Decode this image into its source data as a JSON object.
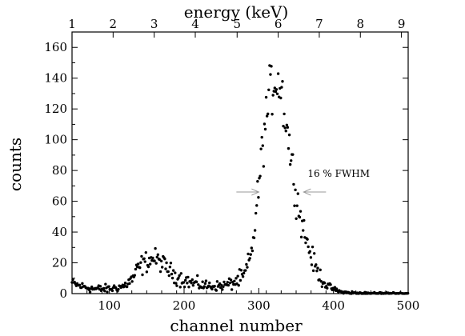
{
  "chart_data": {
    "type": "scatter",
    "title": "",
    "xlabel": "channel number",
    "ylabel": "counts",
    "x2label": "energy (keV)",
    "xlim": [
      50,
      500
    ],
    "ylim": [
      0,
      170
    ],
    "x_ticks": [
      100,
      200,
      300,
      400,
      500
    ],
    "y_ticks": [
      0,
      20,
      40,
      60,
      80,
      100,
      120,
      140,
      160
    ],
    "top_axis": {
      "ticks": [
        {
          "channel": 50,
          "label": "1"
        },
        {
          "channel": 105,
          "label": "2"
        },
        {
          "channel": 160,
          "label": "3"
        },
        {
          "channel": 215,
          "label": "4"
        },
        {
          "channel": 271,
          "label": "5"
        },
        {
          "channel": 326,
          "label": "6"
        },
        {
          "channel": 381,
          "label": "7"
        },
        {
          "channel": 436,
          "label": "8"
        },
        {
          "channel": 491,
          "label": "9"
        }
      ]
    },
    "grid": false,
    "annotation": {
      "text": "16 % FWHM",
      "y": 66,
      "left_arrow_x": [
        270,
        300
      ],
      "right_arrow_x": [
        390,
        360
      ]
    },
    "profile": [
      [
        50,
        7
      ],
      [
        60,
        5
      ],
      [
        70,
        4
      ],
      [
        80,
        3
      ],
      [
        90,
        3
      ],
      [
        100,
        3
      ],
      [
        110,
        4
      ],
      [
        120,
        5
      ],
      [
        130,
        9
      ],
      [
        140,
        17
      ],
      [
        150,
        21
      ],
      [
        160,
        23
      ],
      [
        170,
        20
      ],
      [
        180,
        15
      ],
      [
        190,
        11
      ],
      [
        200,
        9
      ],
      [
        210,
        7
      ],
      [
        220,
        6
      ],
      [
        230,
        5
      ],
      [
        240,
        5
      ],
      [
        250,
        5
      ],
      [
        260,
        6
      ],
      [
        270,
        8
      ],
      [
        280,
        11
      ],
      [
        290,
        25
      ],
      [
        295,
        45
      ],
      [
        300,
        70
      ],
      [
        305,
        95
      ],
      [
        310,
        115
      ],
      [
        315,
        130
      ],
      [
        320,
        138
      ],
      [
        325,
        140
      ],
      [
        330,
        133
      ],
      [
        335,
        118
      ],
      [
        340,
        100
      ],
      [
        345,
        82
      ],
      [
        350,
        65
      ],
      [
        355,
        52
      ],
      [
        360,
        42
      ],
      [
        365,
        33
      ],
      [
        370,
        25
      ],
      [
        375,
        18
      ],
      [
        380,
        13
      ],
      [
        385,
        9
      ],
      [
        390,
        6
      ],
      [
        395,
        4
      ],
      [
        400,
        3
      ],
      [
        410,
        1
      ],
      [
        420,
        0.5
      ],
      [
        440,
        0
      ],
      [
        500,
        0
      ]
    ],
    "scatter_amplitude": [
      [
        50,
        2
      ],
      [
        120,
        2
      ],
      [
        140,
        5
      ],
      [
        180,
        4
      ],
      [
        250,
        2
      ],
      [
        290,
        5
      ],
      [
        310,
        12
      ],
      [
        330,
        14
      ],
      [
        350,
        8
      ],
      [
        380,
        4
      ],
      [
        400,
        1
      ],
      [
        500,
        0.5
      ]
    ],
    "point_step": 1.15
  }
}
